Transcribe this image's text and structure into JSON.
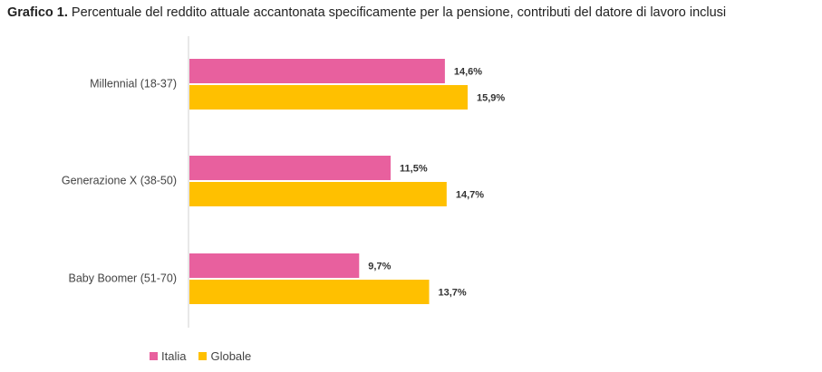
{
  "chart_title": {
    "label": "Grafico 1.",
    "text": "Percentuale del reddito attuale accantonata specificamente per la pensione, contributi del datore di lavoro inclusi"
  },
  "chart_data": {
    "type": "bar",
    "orientation": "horizontal",
    "title": "Grafico 1. Percentuale del reddito attuale accantonata specificamente per la pensione, contributi del datore di lavoro inclusi",
    "categories": [
      "Millennial (18-37)",
      "Generazione X (38-50)",
      "Baby Boomer (51-70)"
    ],
    "series": [
      {
        "name": "Italia",
        "color": "#E8609E",
        "values": [
          14.6,
          11.5,
          9.7
        ],
        "labels": [
          "14,6%",
          "11,5%",
          "9,7%"
        ]
      },
      {
        "name": "Globale",
        "color": "#FFC000",
        "values": [
          15.9,
          14.7,
          13.7
        ],
        "labels": [
          "15,9%",
          "14,7%",
          "13,7%"
        ]
      }
    ],
    "xlim": [
      0,
      16
    ],
    "grid": false,
    "legend_position": "bottom-left",
    "xlabel": "",
    "ylabel": ""
  }
}
